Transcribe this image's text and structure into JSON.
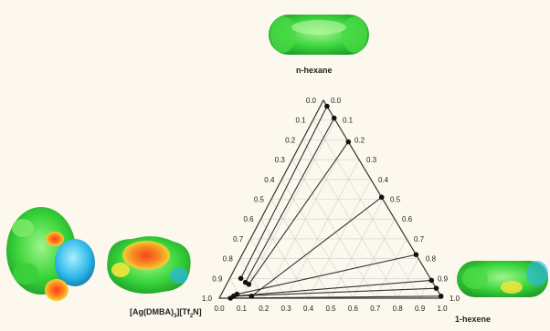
{
  "chart_data": {
    "type": "ternary-phase-diagram",
    "corners": {
      "top": "n-hexane",
      "bottom_left": "[Ag(DMBA)",
      "bottom_left_sub1": "3",
      "bottom_left_mid": "][Tf",
      "bottom_left_sub2": "2",
      "bottom_left_end": "N]",
      "bottom_right": "1-hexene"
    },
    "ticks": [
      "0.0",
      "0.1",
      "0.2",
      "0.3",
      "0.4",
      "0.5",
      "0.6",
      "0.7",
      "0.8",
      "0.9",
      "1.0"
    ],
    "axes": {
      "left_edge": "fraction of [Ag(DMBA)3][Tf2N], 0.0 at apex to 1.0 at bottom-left",
      "right_edge": "fraction of n-hexane, 1.0 at apex to 0.0 at bottom-right",
      "bottom_edge": "fraction of 1-hexene, 0.0 at bottom-left to 1.0 at bottom-right"
    },
    "grid": true,
    "tie_lines": [
      {
        "il": [
          0.85,
          0.1,
          0.05
        ],
        "hc": [
          0.0,
          0.97,
          0.03
        ]
      },
      {
        "il": [
          0.84,
          0.08,
          0.08
        ],
        "hc": [
          0.0,
          0.91,
          0.09
        ]
      },
      {
        "il": [
          0.83,
          0.07,
          0.1
        ],
        "hc": [
          0.0,
          0.79,
          0.21
        ]
      },
      {
        "il": [
          0.85,
          0.01,
          0.14
        ],
        "hc": [
          0.0,
          0.51,
          0.49
        ]
      },
      {
        "il": [
          0.91,
          0.02,
          0.07
        ],
        "hc": [
          0.0,
          0.22,
          0.78
        ]
      },
      {
        "il": [
          0.93,
          0.01,
          0.06
        ],
        "hc": [
          0.0,
          0.09,
          0.91
        ]
      },
      {
        "il": [
          0.93,
          0.01,
          0.06
        ],
        "hc": [
          0.0,
          0.05,
          0.95
        ]
      },
      {
        "il": [
          0.95,
          0.0,
          0.05
        ],
        "hc": [
          0.0,
          0.01,
          0.99
        ]
      }
    ]
  }
}
